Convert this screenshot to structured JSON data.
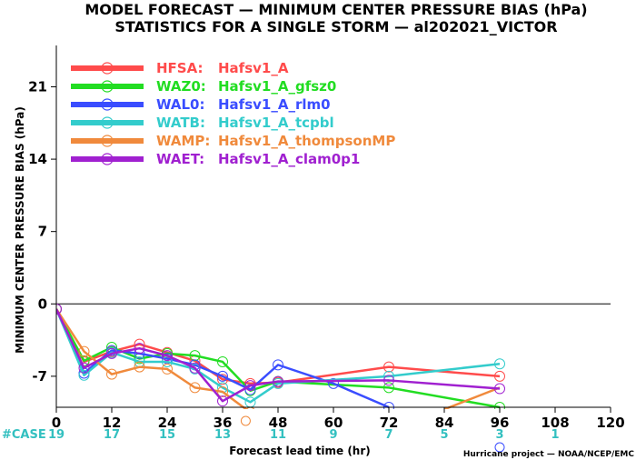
{
  "chart_data": {
    "type": "line",
    "title": "MODEL FORECAST — MINIMUM CENTER PRESSURE BIAS (hPa)",
    "subtitle": "STATISTICS FOR A SINGLE STORM — al202021_VICTOR",
    "xlabel": "Forecast lead time (hr)",
    "ylabel": "MINIMUM CENTER PRESSURE BIAS (hPa)",
    "xlim": [
      0,
      120
    ],
    "ylim": [
      -10,
      25
    ],
    "x_ticks": [
      0,
      12,
      24,
      36,
      48,
      60,
      72,
      84,
      96,
      108,
      120
    ],
    "y_ticks": [
      -7,
      0,
      7,
      14,
      21
    ],
    "zero_line": true,
    "legend_position": "top-left",
    "case_label": "#CASE",
    "case_hours": [
      0,
      12,
      24,
      36,
      48,
      60,
      72,
      84,
      96,
      108
    ],
    "case_counts": [
      "19",
      "17",
      "15",
      "13",
      "11",
      "9",
      "7",
      "5",
      "3",
      "1"
    ],
    "credit": "Hurricane project — NOAA/NCEP/EMC",
    "series": [
      {
        "name": "HFSA:",
        "model": "Hafsv1_A",
        "color": "#ff4b4b",
        "x": [
          0,
          6,
          12,
          18,
          24,
          30,
          36,
          42,
          48,
          72,
          96
        ],
        "y": [
          -0.5,
          -5.6,
          -4.6,
          -3.9,
          -4.7,
          -5.5,
          -7.3,
          -7.7,
          -7.6,
          -6.1,
          -7.0
        ]
      },
      {
        "name": "WAZ0:",
        "model": "Hafsv1_A_gfsz0",
        "color": "#22dd22",
        "x": [
          0,
          6,
          12,
          18,
          24,
          30,
          36,
          42,
          48,
          72,
          96
        ],
        "y": [
          -0.5,
          -5.5,
          -4.2,
          -5.3,
          -4.8,
          -5.0,
          -5.6,
          -8.4,
          -7.5,
          -8.1,
          -10.0
        ]
      },
      {
        "name": "WAL0:",
        "model": "Hafsv1_A_rlm0",
        "color": "#3a4dff",
        "x": [
          0,
          6,
          12,
          18,
          24,
          30,
          36,
          42,
          48,
          60,
          72
        ],
        "y": [
          -0.5,
          -6.7,
          -4.5,
          -4.8,
          -5.3,
          -5.9,
          -7.0,
          -8.3,
          -5.9,
          -7.7,
          -10.0
        ]
      },
      {
        "name": "WATB:",
        "model": "Hafsv1_A_tcpbl",
        "color": "#33cccc",
        "x": [
          0,
          6,
          12,
          18,
          24,
          30,
          36,
          42,
          48,
          72,
          96
        ],
        "y": [
          -0.5,
          -6.9,
          -4.7,
          -5.6,
          -5.6,
          -6.3,
          -8.1,
          -9.5,
          -7.7,
          -7.0,
          -5.8
        ]
      },
      {
        "name": "WAMP:",
        "model": "Hafsv1_A_thompsonMP",
        "color": "#f08a3c",
        "x": [
          0,
          6,
          12,
          18,
          24,
          30,
          36,
          42
        ],
        "y": [
          -0.5,
          -4.6,
          -6.8,
          -6.1,
          -6.3,
          -8.1,
          -8.5,
          -10.5
        ],
        "extra_x": [
          84,
          96
        ],
        "extra_y": [
          -10.2,
          -8.1
        ]
      },
      {
        "name": "WAET:",
        "model": "Hafsv1_A_clam0p1",
        "color": "#a020d0",
        "x": [
          0,
          6,
          12,
          18,
          24,
          30,
          36,
          42,
          48,
          72,
          96
        ],
        "y": [
          -0.5,
          -6.2,
          -4.8,
          -4.3,
          -5.0,
          -6.2,
          -9.4,
          -7.9,
          -7.5,
          -7.4,
          -8.2
        ]
      }
    ]
  }
}
